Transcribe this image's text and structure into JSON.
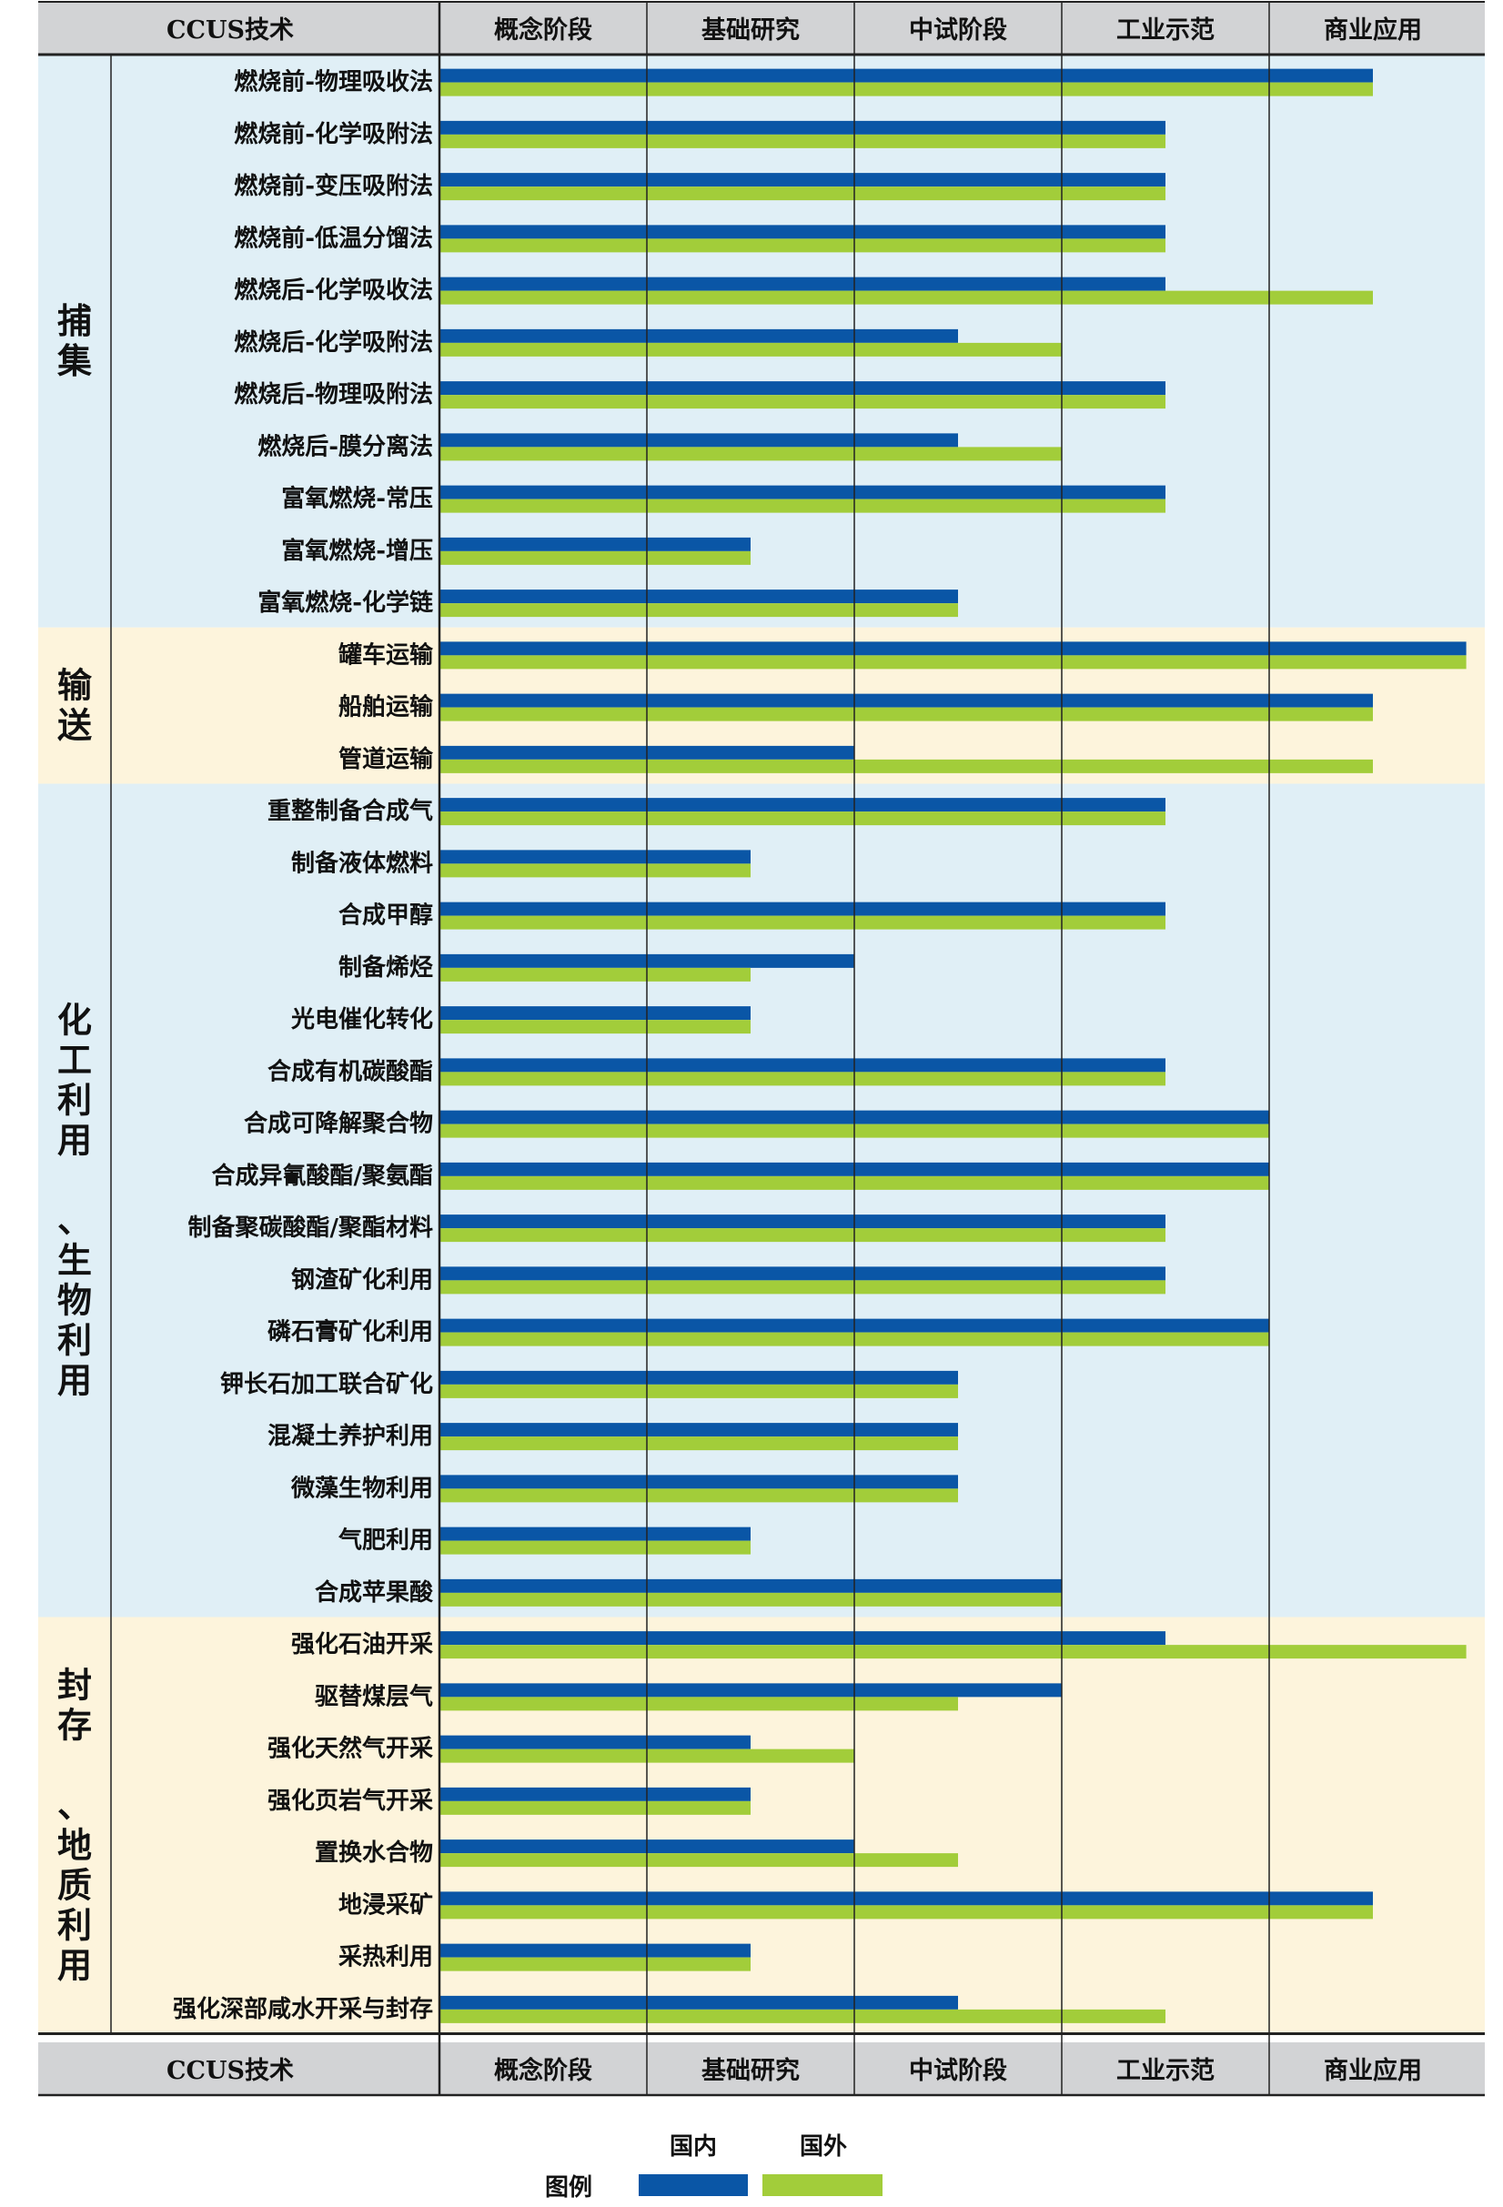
{
  "header": {
    "tech_label": "CCUS技术",
    "stages": [
      "概念阶段",
      "基础研究",
      "中试阶段",
      "工业示范",
      "商业应用"
    ]
  },
  "footer": {
    "tech_label": "CCUS技术",
    "stages": [
      "概念阶段",
      "基础研究",
      "中试阶段",
      "工业示范",
      "商业应用"
    ]
  },
  "legend": {
    "title": "图例",
    "domestic": "国内",
    "foreign": "国外"
  },
  "colors": {
    "domestic": "#0a56a6",
    "foreign": "#a2cd3a",
    "band_blue": "#e0eff6",
    "band_yellow": "#fdf4dc",
    "header_bg": "#d2d3d5"
  },
  "chart_data": {
    "type": "bar",
    "orientation": "horizontal",
    "x_unit": "stage (0-5 scale: 概念阶段→商业应用)",
    "xlim": [
      0,
      5
    ],
    "series_names": [
      "国内",
      "国外"
    ],
    "groups": [
      {
        "name": "捕集",
        "band": "blue",
        "items": [
          {
            "label": "燃烧前-物理吸收法",
            "domestic": 4.5,
            "foreign": 4.5
          },
          {
            "label": "燃烧前-化学吸附法",
            "domestic": 3.5,
            "foreign": 3.5
          },
          {
            "label": "燃烧前-变压吸附法",
            "domestic": 3.5,
            "foreign": 3.5
          },
          {
            "label": "燃烧前-低温分馏法",
            "domestic": 3.5,
            "foreign": 3.5
          },
          {
            "label": "燃烧后-化学吸收法",
            "domestic": 3.5,
            "foreign": 4.5
          },
          {
            "label": "燃烧后-化学吸附法",
            "domestic": 2.5,
            "foreign": 3.0
          },
          {
            "label": "燃烧后-物理吸附法",
            "domestic": 3.5,
            "foreign": 3.5
          },
          {
            "label": "燃烧后-膜分离法",
            "domestic": 2.5,
            "foreign": 3.0
          },
          {
            "label": "富氧燃烧-常压",
            "domestic": 3.5,
            "foreign": 3.5
          },
          {
            "label": "富氧燃烧-增压",
            "domestic": 1.5,
            "foreign": 1.5
          },
          {
            "label": "富氧燃烧-化学链",
            "domestic": 2.5,
            "foreign": 2.5
          }
        ]
      },
      {
        "name": "输送",
        "band": "yellow",
        "items": [
          {
            "label": "罐车运输",
            "domestic": 4.95,
            "foreign": 4.95
          },
          {
            "label": "船舶运输",
            "domestic": 4.5,
            "foreign": 4.5
          },
          {
            "label": "管道运输",
            "domestic": 2.0,
            "foreign": 4.5
          }
        ]
      },
      {
        "name": "化工利用 、生物利用",
        "band": "blue",
        "items": [
          {
            "label": "重整制备合成气",
            "domestic": 3.5,
            "foreign": 3.5
          },
          {
            "label": "制备液体燃料",
            "domestic": 1.5,
            "foreign": 1.5
          },
          {
            "label": "合成甲醇",
            "domestic": 3.5,
            "foreign": 3.5
          },
          {
            "label": "制备烯烃",
            "domestic": 2.0,
            "foreign": 1.5
          },
          {
            "label": "光电催化转化",
            "domestic": 1.5,
            "foreign": 1.5
          },
          {
            "label": "合成有机碳酸酯",
            "domestic": 3.5,
            "foreign": 3.5
          },
          {
            "label": "合成可降解聚合物",
            "domestic": 4.0,
            "foreign": 4.0
          },
          {
            "label": "合成异氰酸酯/聚氨酯",
            "domestic": 4.0,
            "foreign": 4.0
          },
          {
            "label": "制备聚碳酸酯/聚酯材料",
            "domestic": 3.5,
            "foreign": 3.5
          },
          {
            "label": "钢渣矿化利用",
            "domestic": 3.5,
            "foreign": 3.5
          },
          {
            "label": "磷石膏矿化利用",
            "domestic": 4.0,
            "foreign": 4.0
          },
          {
            "label": "钾长石加工联合矿化",
            "domestic": 2.5,
            "foreign": 2.5
          },
          {
            "label": "混凝土养护利用",
            "domestic": 2.5,
            "foreign": 2.5
          },
          {
            "label": "微藻生物利用",
            "domestic": 2.5,
            "foreign": 2.5
          },
          {
            "label": "气肥利用",
            "domestic": 1.5,
            "foreign": 1.5
          },
          {
            "label": "合成苹果酸",
            "domestic": 3.0,
            "foreign": 3.0
          }
        ]
      },
      {
        "name": "封存 、地质利用",
        "band": "yellow",
        "items": [
          {
            "label": "强化石油开采",
            "domestic": 3.5,
            "foreign": 4.95
          },
          {
            "label": "驱替煤层气",
            "domestic": 3.0,
            "foreign": 2.5
          },
          {
            "label": "强化天然气开采",
            "domestic": 1.5,
            "foreign": 2.0
          },
          {
            "label": "强化页岩气开采",
            "domestic": 1.5,
            "foreign": 1.5
          },
          {
            "label": "置换水合物",
            "domestic": 2.0,
            "foreign": 2.5
          },
          {
            "label": "地浸采矿",
            "domestic": 4.5,
            "foreign": 4.5
          },
          {
            "label": "采热利用",
            "domestic": 1.5,
            "foreign": 1.5
          },
          {
            "label": "强化深部咸水开采与封存",
            "domestic": 2.5,
            "foreign": 3.5
          }
        ]
      }
    ]
  }
}
